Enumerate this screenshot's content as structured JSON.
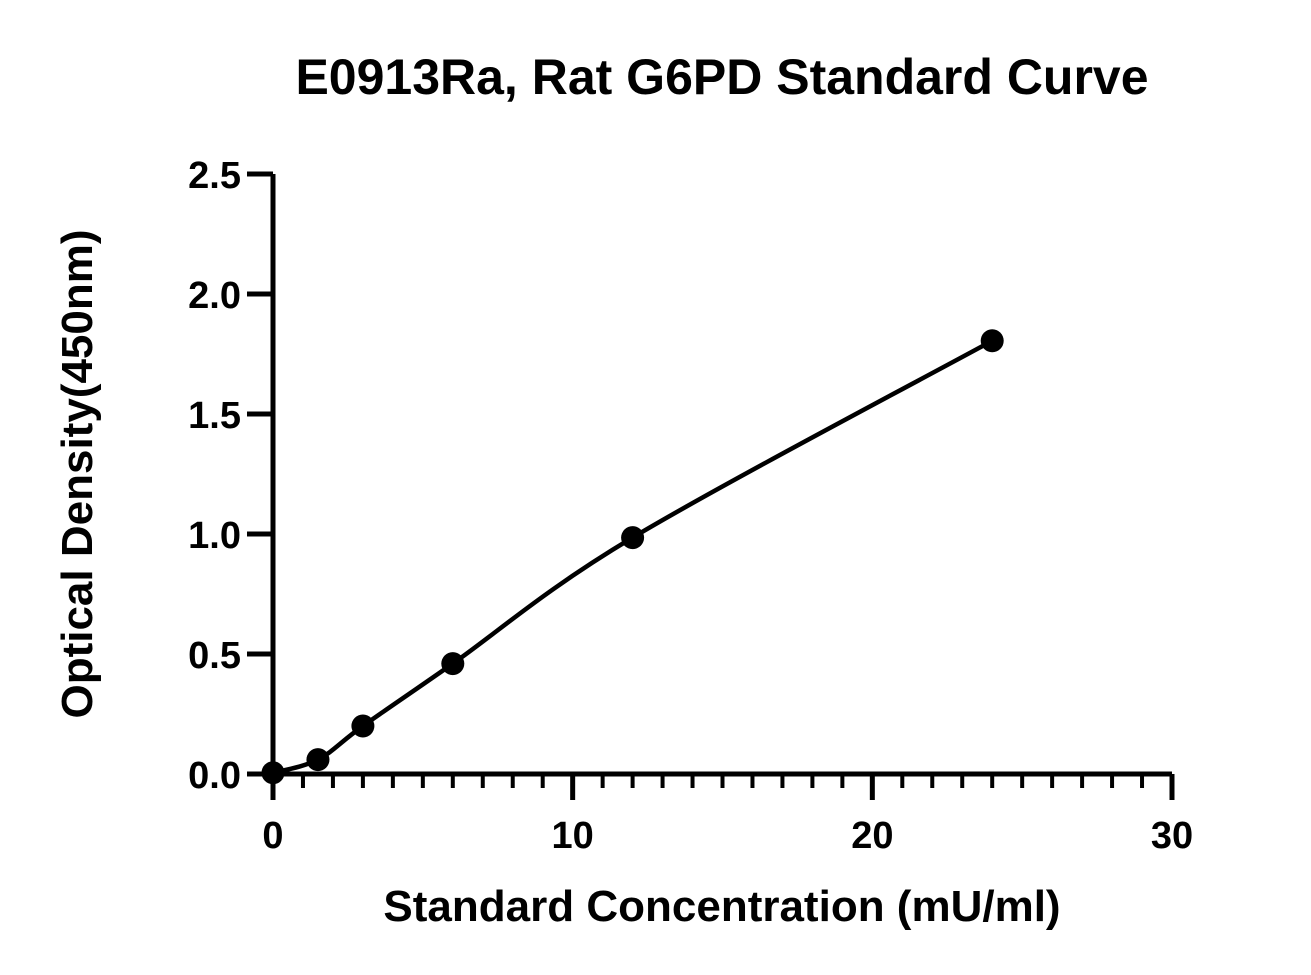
{
  "chart_data": {
    "type": "scatter",
    "title": "E0913Ra, Rat G6PD Standard Curve",
    "xlabel": "Standard Concentration (mU/ml)",
    "ylabel": "Optical Density(450nm)",
    "xlim": [
      0,
      30
    ],
    "ylim": [
      0,
      2.5
    ],
    "x_ticks": [
      "0",
      "10",
      "20",
      "30"
    ],
    "y_ticks": [
      "0.0",
      "0.5",
      "1.0",
      "1.5",
      "2.0",
      "2.5"
    ],
    "x_minor_step": 1,
    "grid": false,
    "legend": "none",
    "series": [
      {
        "points": [
          {
            "x": 0,
            "y": 0.005
          },
          {
            "x": 1.5,
            "y": 0.06
          },
          {
            "x": 3,
            "y": 0.2
          },
          {
            "x": 6,
            "y": 0.46
          },
          {
            "x": 12,
            "y": 0.985
          },
          {
            "x": 24,
            "y": 1.805
          }
        ],
        "fit_curve": true
      }
    ],
    "colors": {
      "marks": "#000000",
      "background": "#ffffff"
    }
  }
}
